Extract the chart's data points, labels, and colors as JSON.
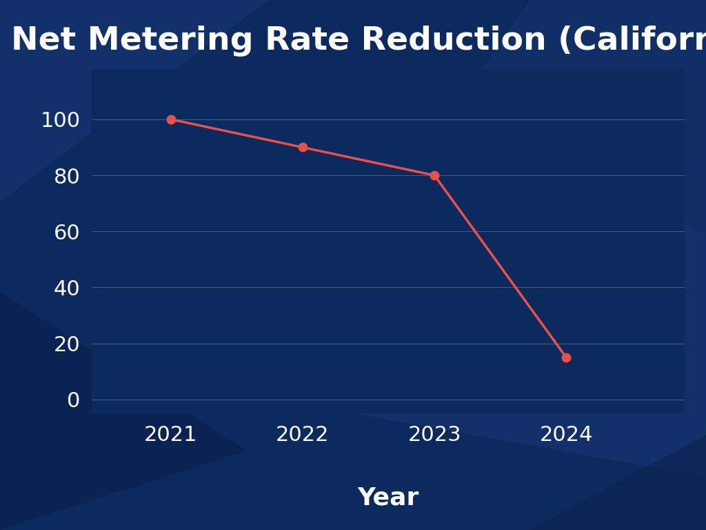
{
  "title": "Net Metering Rate Reduction (California)",
  "xlabel": "Year",
  "years": [
    2021,
    2022,
    2023,
    2024
  ],
  "values": [
    100,
    90,
    80,
    15
  ],
  "line_color": "#E8524A",
  "marker_color": "#E8524A",
  "bg_color": "#0D2A5E",
  "text_color": "#FFFFFF",
  "grid_color": "#FFFFFF",
  "yticks": [
    0,
    20,
    40,
    60,
    80,
    100
  ],
  "ylim": [
    -5,
    118
  ],
  "title_fontsize": 34,
  "xlabel_fontsize": 26,
  "tick_fontsize": 22,
  "line_width": 2.5,
  "marker_size": 9,
  "poly_light": "#1535708A",
  "poly_dark": "#0A2050"
}
